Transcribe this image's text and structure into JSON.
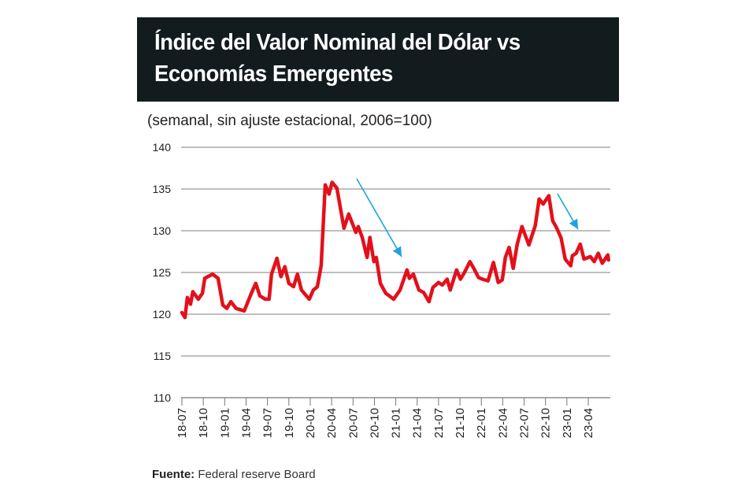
{
  "chart_data": {
    "type": "line",
    "title": "Índice del Valor Nominal del Dólar vs Economías Emergentes",
    "subtitle": "(semanal, sin ajuste estacional, 2006=100)",
    "xlabel": "",
    "ylabel": "",
    "ylim": [
      110,
      140
    ],
    "yticks": [
      110,
      115,
      120,
      125,
      130,
      135,
      140
    ],
    "xticks": [
      "18-07",
      "18-10",
      "19-01",
      "19-04",
      "19-07",
      "19-10",
      "20-01",
      "20-04",
      "20-07",
      "20-10",
      "21-01",
      "21-04",
      "21-07",
      "21-10",
      "22-01",
      "22-04",
      "22-07",
      "22-10",
      "23-01",
      "23-04"
    ],
    "grid": "horizontal",
    "line_color": "#e3101b",
    "annotation_color": "#1fa3dc",
    "annotations": [
      "arrow-down-right after 2020 peak",
      "arrow-down-right after 2022 peak"
    ],
    "series": [
      {
        "x": [
          "2018-07-01",
          "2018-07-14",
          "2018-07-24",
          "2018-08-07",
          "2018-08-17",
          "2018-09-10",
          "2018-09-27",
          "2018-10-07",
          "2018-11-10",
          "2018-12-03",
          "2018-12-23",
          "2019-01-10",
          "2019-01-27",
          "2019-02-19",
          "2019-03-23",
          "2019-04-26",
          "2019-05-12",
          "2019-05-29",
          "2019-06-22",
          "2019-07-08",
          "2019-07-18",
          "2019-08-11",
          "2019-08-28",
          "2019-09-14",
          "2019-10-01",
          "2019-10-21",
          "2019-11-07",
          "2019-11-24",
          "2019-12-27",
          "2020-01-14",
          "2020-02-01",
          "2020-02-17",
          "2020-03-04",
          "2020-03-20",
          "2020-04-03",
          "2020-04-23",
          "2020-05-23",
          "2020-06-13",
          "2020-07-13",
          "2020-07-23",
          "2020-08-10",
          "2020-08-30",
          "2020-09-12",
          "2020-09-29",
          "2020-10-09",
          "2020-10-26",
          "2020-11-19",
          "2020-11-29",
          "2020-12-22",
          "2021-01-19",
          "2021-02-18",
          "2021-02-28",
          "2021-03-15",
          "2021-04-08",
          "2021-04-28",
          "2021-05-21",
          "2021-06-07",
          "2021-07-01",
          "2021-07-17",
          "2021-08-07",
          "2021-08-20",
          "2021-09-17",
          "2021-10-03",
          "2021-10-20",
          "2021-11-13",
          "2021-11-29",
          "2021-12-19",
          "2022-01-06",
          "2022-01-29",
          "2022-02-22",
          "2022-03-12",
          "2022-03-29",
          "2022-04-12",
          "2022-04-28",
          "2022-05-15",
          "2022-06-02",
          "2022-06-22",
          "2022-07-21",
          "2022-08-18",
          "2022-09-04",
          "2022-09-21",
          "2022-10-15",
          "2022-11-01",
          "2022-11-17",
          "2022-12-07",
          "2022-12-24",
          "2023-01-17",
          "2023-01-24",
          "2023-02-10",
          "2023-02-27",
          "2023-03-13",
          "2023-04-10",
          "2023-04-26",
          "2023-05-13",
          "2023-05-30",
          "2023-06-23",
          "2023-06-26"
        ],
        "y": [
          120.2,
          119.6,
          122.0,
          121.2,
          122.7,
          121.8,
          122.5,
          124.3,
          124.8,
          124.3,
          121.1,
          120.7,
          121.5,
          120.7,
          120.4,
          122.7,
          123.7,
          122.2,
          121.8,
          121.8,
          124.8,
          126.7,
          124.5,
          125.7,
          123.7,
          123.3,
          124.8,
          122.9,
          121.8,
          122.9,
          123.3,
          125.8,
          135.5,
          134.4,
          135.8,
          135.1,
          130.3,
          132.0,
          129.8,
          130.5,
          129.2,
          126.8,
          129.2,
          126.3,
          126.8,
          123.7,
          122.5,
          122.3,
          121.8,
          122.9,
          125.3,
          124.3,
          124.8,
          122.9,
          122.6,
          121.5,
          123.2,
          123.8,
          123.5,
          124.2,
          122.9,
          125.3,
          124.2,
          125.0,
          126.3,
          125.5,
          124.4,
          124.2,
          124.0,
          126.2,
          123.8,
          124.1,
          126.8,
          128.0,
          125.5,
          128.4,
          130.5,
          128.3,
          130.6,
          133.8,
          133.2,
          134.2,
          131.2,
          130.4,
          129.1,
          126.6,
          125.8,
          127.0,
          127.3,
          128.4,
          126.6,
          126.9,
          126.3,
          127.3,
          126.1,
          127.1,
          126.5
        ]
      }
    ]
  },
  "source": {
    "label": "Fuente:",
    "text": "Federal reserve Board"
  }
}
